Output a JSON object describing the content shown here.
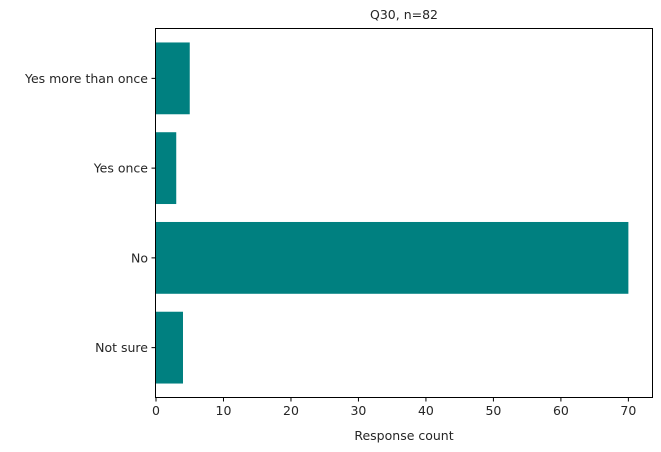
{
  "chart_data": {
    "type": "bar",
    "orientation": "horizontal",
    "title": "Q30, n=82",
    "xlabel": "Response count",
    "ylabel": "",
    "categories": [
      "Yes more than once",
      "Yes once",
      "No",
      "Not sure"
    ],
    "values": [
      5,
      3,
      70,
      4
    ],
    "xlim": [
      0,
      73.5
    ],
    "xticks": [
      0,
      10,
      20,
      30,
      40,
      50,
      60,
      70
    ],
    "grid": false,
    "legend": "none",
    "bar_color": "#008080"
  }
}
